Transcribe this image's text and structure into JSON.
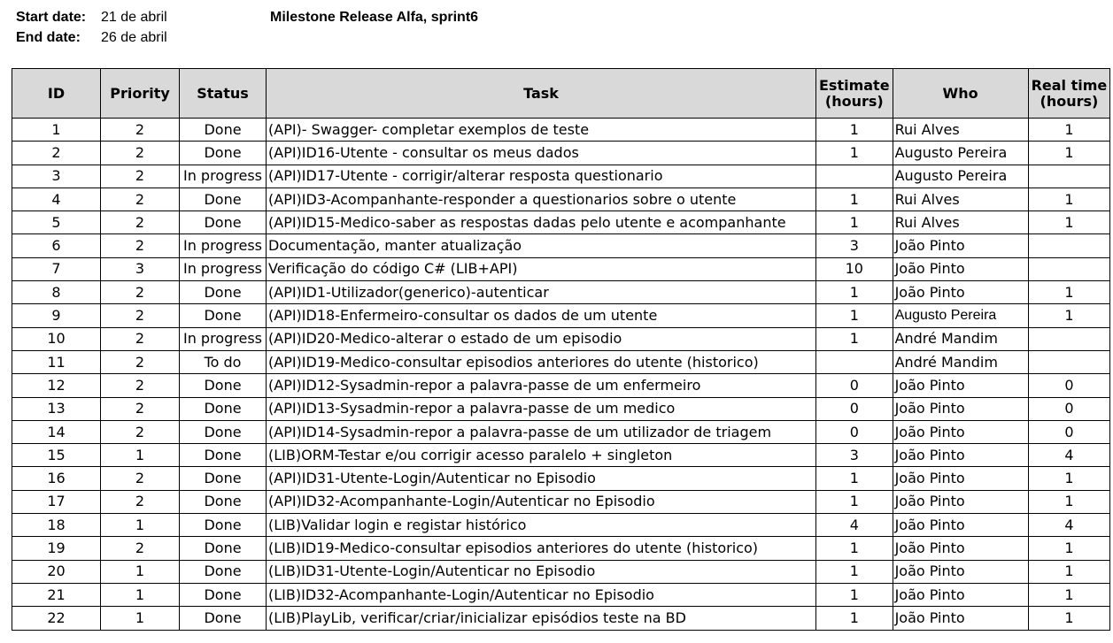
{
  "header": {
    "start_label": "Start date:",
    "start_value": "21 de abril",
    "end_label": "End date:",
    "end_value": "26 de abril",
    "title": "Milestone Release Alfa, sprint6"
  },
  "table": {
    "columns": {
      "id": "ID",
      "priority": "Priority",
      "status": "Status",
      "task": "Task",
      "estimate_line1": "Estimate",
      "estimate_line2": "(hours)",
      "who": "Who",
      "real_line1": "Real time",
      "real_line2": "(hours)"
    },
    "rows": [
      {
        "id": "1",
        "priority": "2",
        "status": "Done",
        "task": "(API)- Swagger- completar exemplos de teste",
        "estimate": "1",
        "who": "Rui Alves",
        "real": "1"
      },
      {
        "id": "2",
        "priority": "2",
        "status": "Done",
        "task": "(API)ID16-Utente - consultar os meus dados",
        "estimate": "1",
        "who": "Augusto Pereira",
        "real": "1"
      },
      {
        "id": "3",
        "priority": "2",
        "status": "In progress",
        "task": "(API)ID17-Utente - corrigir/alterar resposta questionario",
        "estimate": "",
        "who": "Augusto Pereira",
        "real": ""
      },
      {
        "id": "4",
        "priority": "2",
        "status": "Done",
        "task": "(API)ID3-Acompanhante-responder a questionarios sobre o utente",
        "estimate": "1",
        "who": "Rui Alves",
        "real": "1"
      },
      {
        "id": "5",
        "priority": "2",
        "status": "Done",
        "task": "(API)ID15-Medico-saber as respostas dadas pelo utente e acompanhante",
        "estimate": "1",
        "who": "Rui Alves",
        "real": "1"
      },
      {
        "id": "6",
        "priority": "2",
        "status": "In progress",
        "task": "Documentação, manter atualização",
        "estimate": "3",
        "who": "João Pinto",
        "real": ""
      },
      {
        "id": "7",
        "priority": "3",
        "status": "In progress",
        "task": "Verificação do código C# (LIB+API)",
        "estimate": "10",
        "who": "João Pinto",
        "real": ""
      },
      {
        "id": "8",
        "priority": "2",
        "status": "Done",
        "task": "(API)ID1-Utilizador(generico)-autenticar",
        "estimate": "1",
        "who": "João Pinto",
        "real": "1"
      },
      {
        "id": "9",
        "priority": "2",
        "status": "Done",
        "task": "(API)ID18-Enfermeiro-consultar os dados de um utente",
        "estimate": "1",
        "who": "Augusto Pereira",
        "real": "1"
      },
      {
        "id": "10",
        "priority": "2",
        "status": "In progress",
        "task": "(API)ID20-Medico-alterar o estado de um episodio",
        "estimate": "1",
        "who": "André Mandim",
        "real": ""
      },
      {
        "id": "11",
        "priority": "2",
        "status": "To do",
        "task": "(API)ID19-Medico-consultar episodios anteriores do utente (historico)",
        "estimate": "",
        "who": "André Mandim",
        "real": ""
      },
      {
        "id": "12",
        "priority": "2",
        "status": "Done",
        "task": "(API)ID12-Sysadmin-repor a palavra-passe de um enfermeiro",
        "estimate": "0",
        "who": "João Pinto",
        "real": "0"
      },
      {
        "id": "13",
        "priority": "2",
        "status": "Done",
        "task": "(API)ID13-Sysadmin-repor a palavra-passe de um medico",
        "estimate": "0",
        "who": "João Pinto",
        "real": "0"
      },
      {
        "id": "14",
        "priority": "2",
        "status": "Done",
        "task": "(API)ID14-Sysadmin-repor a palavra-passe de um utilizador de triagem",
        "estimate": "0",
        "who": "João Pinto",
        "real": "0"
      },
      {
        "id": "15",
        "priority": "1",
        "status": "Done",
        "task": "(LIB)ORM-Testar e/ou corrigir acesso paralelo + singleton",
        "estimate": "3",
        "who": "João Pinto",
        "real": "4"
      },
      {
        "id": "16",
        "priority": "2",
        "status": "Done",
        "task": "(API)ID31-Utente-Login/Autenticar no Episodio",
        "estimate": "1",
        "who": "João Pinto",
        "real": "1"
      },
      {
        "id": "17",
        "priority": "2",
        "status": "Done",
        "task": "(API)ID32-Acompanhante-Login/Autenticar no Episodio",
        "estimate": "1",
        "who": "João Pinto",
        "real": "1"
      },
      {
        "id": "18",
        "priority": "1",
        "status": "Done",
        "task": "(LIB)Validar login e registar histórico",
        "estimate": "4",
        "who": "João Pinto",
        "real": "4"
      },
      {
        "id": "19",
        "priority": "2",
        "status": "Done",
        "task": "(LIB)ID19-Medico-consultar episodios anteriores do utente (historico)",
        "estimate": "1",
        "who": "João Pinto",
        "real": "1"
      },
      {
        "id": "20",
        "priority": "1",
        "status": "Done",
        "task": "(LIB)ID31-Utente-Login/Autenticar no Episodio",
        "estimate": "1",
        "who": "João Pinto",
        "real": "1"
      },
      {
        "id": "21",
        "priority": "1",
        "status": "Done",
        "task": "(LIB)ID32-Acompanhante-Login/Autenticar no Episodio",
        "estimate": "1",
        "who": "João Pinto",
        "real": "1"
      },
      {
        "id": "22",
        "priority": "1",
        "status": "Done",
        "task": "(LIB)PlayLib, verificar/criar/inicializar episódios teste na BD",
        "estimate": "1",
        "who": "João Pinto",
        "real": "1"
      }
    ]
  }
}
